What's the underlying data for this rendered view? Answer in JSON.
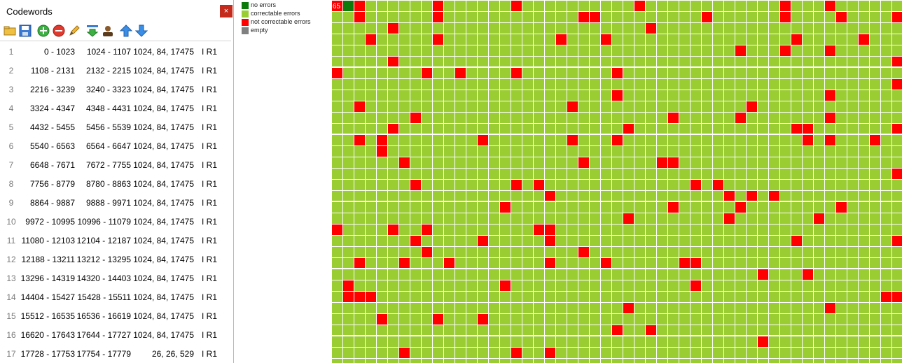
{
  "panel": {
    "title": "Codewords",
    "close_label": "×",
    "toolbar": [
      {
        "name": "open-folder-icon"
      },
      {
        "name": "save-icon"
      },
      {
        "name": "add-icon"
      },
      {
        "name": "remove-icon"
      },
      {
        "name": "edit-pencil-icon"
      },
      {
        "name": "import-down-icon"
      },
      {
        "name": "user-icon"
      },
      {
        "name": "move-up-arrow-icon"
      },
      {
        "name": "move-down-arrow-icon"
      }
    ],
    "rows": [
      {
        "index": "1",
        "range_a": "0 - 1023",
        "range_b": "1024 - 1107",
        "params": "1024, 84, 17475",
        "label": "I R1"
      },
      {
        "index": "2",
        "range_a": "1108 - 2131",
        "range_b": "2132 - 2215",
        "params": "1024, 84, 17475",
        "label": "I R1"
      },
      {
        "index": "3",
        "range_a": "2216 - 3239",
        "range_b": "3240 - 3323",
        "params": "1024, 84, 17475",
        "label": "I R1"
      },
      {
        "index": "4",
        "range_a": "3324 - 4347",
        "range_b": "4348 - 4431",
        "params": "1024, 84, 17475",
        "label": "I R1"
      },
      {
        "index": "5",
        "range_a": "4432 - 5455",
        "range_b": "5456 - 5539",
        "params": "1024, 84, 17475",
        "label": "I R1"
      },
      {
        "index": "6",
        "range_a": "5540 - 6563",
        "range_b": "6564 - 6647",
        "params": "1024, 84, 17475",
        "label": "I R1"
      },
      {
        "index": "7",
        "range_a": "6648 - 7671",
        "range_b": "7672 - 7755",
        "params": "1024, 84, 17475",
        "label": "I R1"
      },
      {
        "index": "8",
        "range_a": "7756 - 8779",
        "range_b": "8780 - 8863",
        "params": "1024, 84, 17475",
        "label": "I R1"
      },
      {
        "index": "9",
        "range_a": "8864 - 9887",
        "range_b": "9888 - 9971",
        "params": "1024, 84, 17475",
        "label": "I R1"
      },
      {
        "index": "10",
        "range_a": "9972 - 10995",
        "range_b": "10996 - 11079",
        "params": "1024, 84, 17475",
        "label": "I R1"
      },
      {
        "index": "11",
        "range_a": "11080 - 12103",
        "range_b": "12104 - 12187",
        "params": "1024, 84, 17475",
        "label": "I R1"
      },
      {
        "index": "12",
        "range_a": "12188 - 13211",
        "range_b": "13212 - 13295",
        "params": "1024, 84, 17475",
        "label": "I R1"
      },
      {
        "index": "13",
        "range_a": "13296 - 14319",
        "range_b": "14320 - 14403",
        "params": "1024, 84, 17475",
        "label": "I R1"
      },
      {
        "index": "14",
        "range_a": "14404 - 15427",
        "range_b": "15428 - 15511",
        "params": "1024, 84, 17475",
        "label": "I R1"
      },
      {
        "index": "15",
        "range_a": "15512 - 16535",
        "range_b": "16536 - 16619",
        "params": "1024, 84, 17475",
        "label": "I R1"
      },
      {
        "index": "16",
        "range_a": "16620 - 17643",
        "range_b": "17644 - 17727",
        "params": "1024, 84, 17475",
        "label": "I R1"
      },
      {
        "index": "17",
        "range_a": "17728 - 17753",
        "range_b": "17754 - 17779",
        "params": "26, 26, 529",
        "label": "I R1"
      }
    ]
  },
  "legend": [
    {
      "label": "no errors",
      "color": "#0b7a0b"
    },
    {
      "label": "correctable errors",
      "color": "#9acd32"
    },
    {
      "label": "not correctable errors",
      "color": "#ff0000"
    },
    {
      "label": "empty",
      "color": "#808080"
    }
  ],
  "grid": {
    "first_cell_label": "65",
    "columns": 51,
    "rows": 33,
    "colors": {
      "no_errors": "#0b7a0b",
      "correctable": "#9acd32",
      "not_correctable": "#ff0000",
      "gridline": "#ffffff"
    },
    "red_cells": [
      [
        0,
        2
      ],
      [
        0,
        9
      ],
      [
        0,
        16
      ],
      [
        0,
        27
      ],
      [
        0,
        40
      ],
      [
        0,
        44
      ],
      [
        1,
        2
      ],
      [
        1,
        9
      ],
      [
        1,
        22
      ],
      [
        1,
        23
      ],
      [
        1,
        33
      ],
      [
        1,
        40
      ],
      [
        1,
        45
      ],
      [
        1,
        50
      ],
      [
        2,
        5
      ],
      [
        2,
        28
      ],
      [
        3,
        3
      ],
      [
        3,
        9
      ],
      [
        3,
        20
      ],
      [
        3,
        24
      ],
      [
        3,
        41
      ],
      [
        3,
        47
      ],
      [
        4,
        36
      ],
      [
        4,
        40
      ],
      [
        4,
        44
      ],
      [
        5,
        5
      ],
      [
        5,
        50
      ],
      [
        6,
        0
      ],
      [
        6,
        8
      ],
      [
        6,
        11
      ],
      [
        6,
        16
      ],
      [
        6,
        25
      ],
      [
        7,
        50
      ],
      [
        8,
        25
      ],
      [
        8,
        44
      ],
      [
        9,
        2
      ],
      [
        9,
        21
      ],
      [
        9,
        37
      ],
      [
        10,
        7
      ],
      [
        10,
        30
      ],
      [
        10,
        36
      ],
      [
        10,
        44
      ],
      [
        11,
        5
      ],
      [
        11,
        26
      ],
      [
        11,
        41
      ],
      [
        11,
        42
      ],
      [
        11,
        50
      ],
      [
        12,
        2
      ],
      [
        12,
        4
      ],
      [
        12,
        13
      ],
      [
        12,
        21
      ],
      [
        12,
        25
      ],
      [
        12,
        42
      ],
      [
        12,
        44
      ],
      [
        12,
        48
      ],
      [
        13,
        4
      ],
      [
        14,
        6
      ],
      [
        14,
        22
      ],
      [
        14,
        29
      ],
      [
        14,
        30
      ],
      [
        15,
        50
      ],
      [
        16,
        7
      ],
      [
        16,
        16
      ],
      [
        16,
        18
      ],
      [
        16,
        32
      ],
      [
        16,
        34
      ],
      [
        17,
        19
      ],
      [
        17,
        35
      ],
      [
        17,
        37
      ],
      [
        17,
        39
      ],
      [
        18,
        15
      ],
      [
        18,
        30
      ],
      [
        18,
        36
      ],
      [
        18,
        45
      ],
      [
        19,
        26
      ],
      [
        19,
        35
      ],
      [
        19,
        43
      ],
      [
        20,
        0
      ],
      [
        20,
        5
      ],
      [
        20,
        8
      ],
      [
        20,
        18
      ],
      [
        20,
        19
      ],
      [
        21,
        7
      ],
      [
        21,
        13
      ],
      [
        21,
        19
      ],
      [
        21,
        41
      ],
      [
        21,
        50
      ],
      [
        22,
        8
      ],
      [
        22,
        22
      ],
      [
        23,
        2
      ],
      [
        23,
        6
      ],
      [
        23,
        10
      ],
      [
        23,
        19
      ],
      [
        23,
        24
      ],
      [
        23,
        31
      ],
      [
        23,
        32
      ],
      [
        24,
        38
      ],
      [
        24,
        42
      ],
      [
        25,
        1
      ],
      [
        25,
        15
      ],
      [
        25,
        32
      ],
      [
        26,
        1
      ],
      [
        26,
        2
      ],
      [
        26,
        3
      ],
      [
        26,
        49
      ],
      [
        26,
        50
      ],
      [
        27,
        26
      ],
      [
        27,
        44
      ],
      [
        28,
        4
      ],
      [
        28,
        9
      ],
      [
        28,
        13
      ],
      [
        29,
        25
      ],
      [
        29,
        28
      ],
      [
        30,
        38
      ],
      [
        31,
        6
      ],
      [
        31,
        16
      ],
      [
        31,
        19
      ]
    ]
  }
}
